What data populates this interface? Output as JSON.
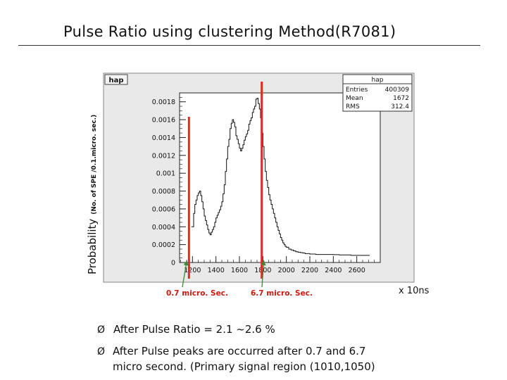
{
  "slide": {
    "title": "Pulse Ratio using clustering Method(R7081)",
    "ylabel_main": "Probability",
    "ylabel_sub": "(No. of SPE /0.1.micro. sec.)",
    "x_unit": "x 10ns",
    "annotations": [
      "0.7 micro. Sec.",
      "6.7 micro. Sec."
    ],
    "bullets": [
      "After Pulse Ratio = 2.1 ~2.6 %",
      "After Pulse peaks are occurred after  0.7 and 6.7",
      "micro second. (Primary signal region (1010,1050)"
    ],
    "bullet_marker": "Ø"
  },
  "chart_data": {
    "type": "histogram",
    "hist_name": "hap",
    "stats": {
      "title": "hap",
      "entries_label": "Entries",
      "entries": "400309",
      "mean_label": "Mean",
      "mean": "1672",
      "rms_label": "RMS",
      "rms": "312.4"
    },
    "xlim": [
      1090,
      2800
    ],
    "ylim": [
      0,
      0.0019
    ],
    "x_ticks": [
      1200,
      1400,
      1600,
      1800,
      2000,
      2200,
      2400,
      2600
    ],
    "x_tick_labels": [
      "1200",
      "1400",
      "1600",
      "1800",
      "2000",
      "2200",
      "2400",
      "2600"
    ],
    "y_ticks": [
      0,
      0.0002,
      0.0004,
      0.0006,
      0.0008,
      0.001,
      0.0012,
      0.0014,
      0.0016,
      0.0018
    ],
    "y_tick_labels": [
      "0",
      "0.0002",
      "0.0004",
      "0.0006",
      "0.0008",
      "0.001",
      "0.0012",
      "0.0014",
      "0.0016",
      "0.0018"
    ],
    "colors": {
      "line": "#111111",
      "markers": "#e02b1e",
      "annot": "#cc1a12",
      "arrows": "#3a8a3a",
      "frame_bg": "#e9e9e9"
    },
    "markers_x": [
      1170,
      1790
    ],
    "bin_width": 10,
    "bins_x": [
      1190,
      1200,
      1210,
      1220,
      1230,
      1240,
      1250,
      1260,
      1270,
      1280,
      1290,
      1300,
      1310,
      1320,
      1330,
      1340,
      1350,
      1360,
      1370,
      1380,
      1390,
      1400,
      1410,
      1420,
      1430,
      1440,
      1450,
      1460,
      1470,
      1480,
      1490,
      1500,
      1510,
      1520,
      1530,
      1540,
      1550,
      1560,
      1570,
      1580,
      1590,
      1600,
      1610,
      1620,
      1630,
      1640,
      1650,
      1660,
      1670,
      1680,
      1690,
      1700,
      1710,
      1720,
      1730,
      1740,
      1750,
      1760,
      1770,
      1780,
      1790,
      1800,
      1810,
      1820,
      1830,
      1840,
      1850,
      1860,
      1870,
      1880,
      1890,
      1900,
      1910,
      1920,
      1930,
      1940,
      1950,
      1960,
      1970,
      1980,
      1990,
      2000,
      2020,
      2040,
      2060,
      2080,
      2100,
      2120,
      2140,
      2160,
      2180,
      2200,
      2250,
      2300,
      2350,
      2400,
      2450,
      2500,
      2550,
      2600,
      2650,
      2700
    ],
    "bins_y": [
      0.0004,
      0.0004,
      0.00055,
      0.00065,
      0.0007,
      0.00075,
      0.00078,
      0.0008,
      0.00075,
      0.00068,
      0.0006,
      0.00052,
      0.00047,
      0.00042,
      0.00037,
      0.00033,
      0.00031,
      0.00034,
      0.00037,
      0.0004,
      0.00045,
      0.0005,
      0.00053,
      0.00056,
      0.00059,
      0.00063,
      0.00068,
      0.00077,
      0.00087,
      0.00102,
      0.00116,
      0.0013,
      0.00138,
      0.0015,
      0.00156,
      0.0016,
      0.00157,
      0.00152,
      0.00142,
      0.00138,
      0.00133,
      0.00128,
      0.00125,
      0.00128,
      0.00132,
      0.00137,
      0.00141,
      0.00144,
      0.00148,
      0.00155,
      0.00159,
      0.00162,
      0.00168,
      0.00172,
      0.00175,
      0.00183,
      0.00184,
      0.00178,
      0.00172,
      0.00162,
      0.00145,
      0.0013,
      0.00116,
      0.00102,
      0.00092,
      0.00084,
      0.00076,
      0.0007,
      0.00065,
      0.0006,
      0.00055,
      0.0005,
      0.00045,
      0.0004,
      0.00036,
      0.00032,
      0.00028,
      0.00025,
      0.00022,
      0.0002,
      0.00018,
      0.00017,
      0.00015,
      0.00014,
      0.00013,
      0.00012,
      0.000115,
      0.00011,
      0.000105,
      0.0001,
      0.0001,
      9.5e-05,
      9e-05,
      9e-05,
      9e-05,
      8.8e-05,
      8.5e-05,
      8.5e-05,
      8e-05,
      8e-05,
      8e-05,
      8e-05
    ]
  }
}
